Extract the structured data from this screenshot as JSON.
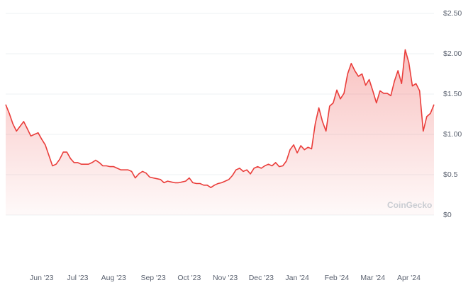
{
  "chart_data": {
    "type": "area",
    "watermark": "CoinGecko",
    "color": "#ea3d3a",
    "grid": true,
    "values": [
      1.37,
      1.26,
      1.13,
      1.04,
      1.1,
      1.16,
      1.07,
      0.98,
      1.0,
      1.02,
      0.94,
      0.87,
      0.74,
      0.61,
      0.63,
      0.69,
      0.78,
      0.78,
      0.7,
      0.65,
      0.65,
      0.63,
      0.63,
      0.63,
      0.65,
      0.68,
      0.65,
      0.61,
      0.61,
      0.6,
      0.6,
      0.58,
      0.56,
      0.56,
      0.56,
      0.54,
      0.46,
      0.51,
      0.54,
      0.52,
      0.47,
      0.46,
      0.45,
      0.44,
      0.4,
      0.42,
      0.41,
      0.4,
      0.4,
      0.41,
      0.42,
      0.46,
      0.4,
      0.39,
      0.39,
      0.37,
      0.37,
      0.34,
      0.37,
      0.39,
      0.4,
      0.42,
      0.44,
      0.49,
      0.56,
      0.58,
      0.54,
      0.56,
      0.51,
      0.58,
      0.6,
      0.58,
      0.61,
      0.63,
      0.61,
      0.65,
      0.6,
      0.61,
      0.67,
      0.81,
      0.87,
      0.77,
      0.86,
      0.81,
      0.84,
      0.82,
      1.13,
      1.33,
      1.16,
      1.04,
      1.35,
      1.39,
      1.55,
      1.44,
      1.51,
      1.75,
      1.88,
      1.79,
      1.72,
      1.75,
      1.61,
      1.68,
      1.54,
      1.39,
      1.54,
      1.51,
      1.51,
      1.48,
      1.66,
      1.79,
      1.63,
      2.05,
      1.89,
      1.6,
      1.63,
      1.54,
      1.04,
      1.22,
      1.26,
      1.37
    ],
    "xlim": [
      0,
      119
    ],
    "xticks": [
      {
        "value": 10,
        "label": "Jun '23"
      },
      {
        "value": 20,
        "label": "Jul '23"
      },
      {
        "value": 30,
        "label": "Aug '23"
      },
      {
        "value": 41,
        "label": "Sep '23"
      },
      {
        "value": 51,
        "label": "Oct '23"
      },
      {
        "value": 61,
        "label": "Nov '23"
      },
      {
        "value": 71,
        "label": "Dec '23"
      },
      {
        "value": 81,
        "label": "Jan '24"
      },
      {
        "value": 92,
        "label": "Feb '24"
      },
      {
        "value": 102,
        "label": "Mar '24"
      },
      {
        "value": 112,
        "label": "Apr '24"
      }
    ],
    "ylim": [
      0,
      2.5
    ],
    "yticks": [
      {
        "value": 2.5,
        "label": "$2.50"
      },
      {
        "value": 2,
        "label": "$2.00"
      },
      {
        "value": 1.5,
        "label": "$1.50"
      },
      {
        "value": 1,
        "label": "$1.00"
      },
      {
        "value": 0.5,
        "label": "$0.5"
      },
      {
        "value": 0,
        "label": "$0"
      }
    ]
  }
}
